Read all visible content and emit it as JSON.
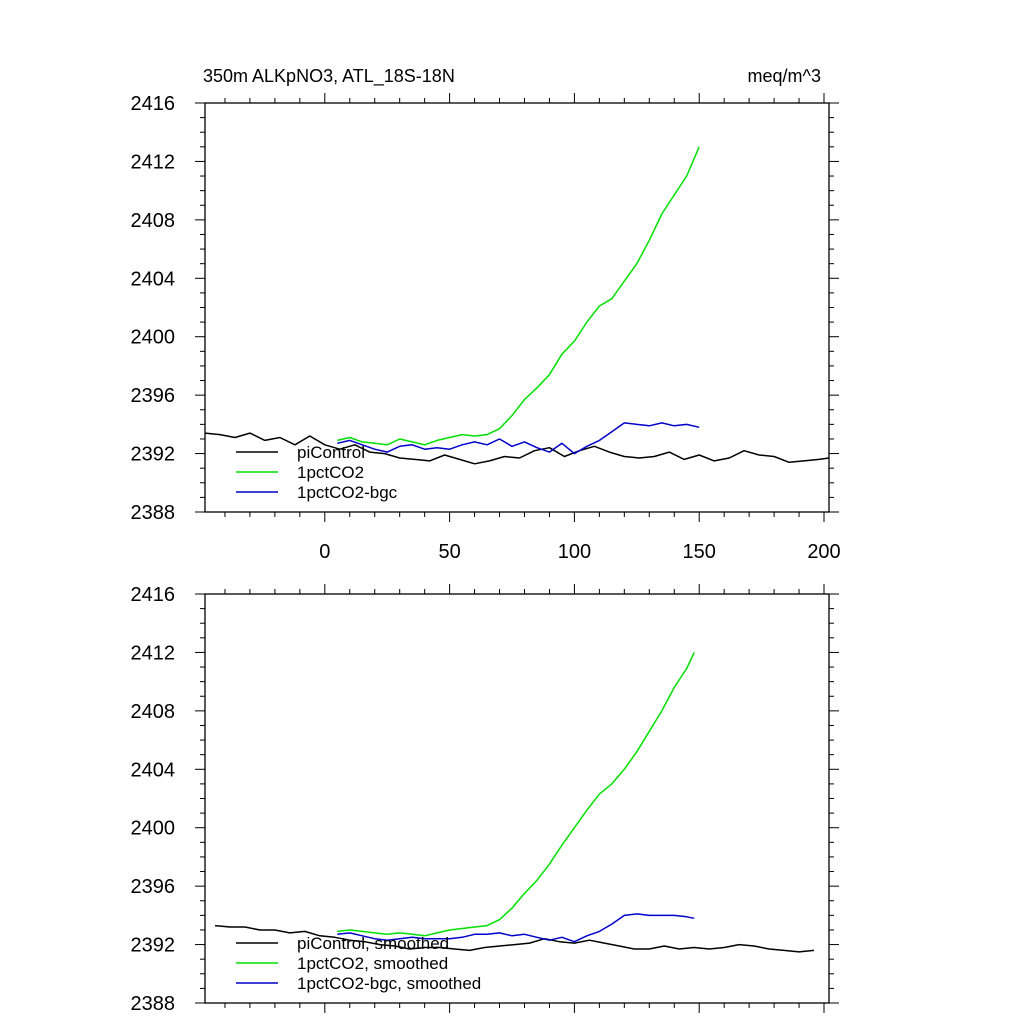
{
  "header": {
    "title_left": "350m ALKpNO3, ATL_18S-18N",
    "title_right": "meq/m^3"
  },
  "colors": {
    "piControl": "#000000",
    "1pctCO2": "#00e000",
    "1pctCO2-bgc": "#0000cc"
  },
  "chart_data": [
    {
      "type": "line",
      "title": "",
      "xlabel": "",
      "ylabel": "",
      "xlim": [
        -48,
        202
      ],
      "ylim": [
        2388,
        2416
      ],
      "x_ticks": [
        "0",
        "50",
        "100",
        "150",
        "200"
      ],
      "y_ticks": [
        "2388",
        "2392",
        "2396",
        "2400",
        "2404",
        "2408",
        "2412",
        "2416"
      ],
      "legend_position": "bottom-left",
      "series": [
        {
          "name": "piControl",
          "x": [
            -48,
            -42,
            -36,
            -30,
            -24,
            -18,
            -12,
            -6,
            0,
            6,
            12,
            18,
            24,
            30,
            36,
            42,
            48,
            54,
            60,
            66,
            72,
            78,
            84,
            90,
            96,
            102,
            108,
            114,
            120,
            126,
            132,
            138,
            144,
            150,
            156,
            162,
            168,
            174,
            180,
            186,
            192,
            198,
            202
          ],
          "y": [
            2393.4,
            2393.3,
            2393.1,
            2393.4,
            2392.9,
            2393.1,
            2392.6,
            2393.2,
            2392.6,
            2392.3,
            2392.6,
            2392.1,
            2392.0,
            2391.7,
            2391.6,
            2391.5,
            2391.9,
            2391.6,
            2391.3,
            2391.5,
            2391.8,
            2391.7,
            2392.2,
            2392.4,
            2391.8,
            2392.2,
            2392.5,
            2392.1,
            2391.8,
            2391.7,
            2391.8,
            2392.1,
            2391.6,
            2391.9,
            2391.5,
            2391.7,
            2392.2,
            2391.9,
            2391.8,
            2391.4,
            2391.5,
            2391.6,
            2391.7
          ]
        },
        {
          "name": "1pctCO2",
          "x": [
            5,
            10,
            15,
            20,
            25,
            30,
            35,
            40,
            45,
            50,
            55,
            60,
            65,
            70,
            75,
            80,
            85,
            90,
            95,
            100,
            105,
            110,
            115,
            120,
            125,
            130,
            135,
            140,
            145,
            150
          ],
          "y": [
            2392.9,
            2393.1,
            2392.8,
            2392.7,
            2392.6,
            2393.0,
            2392.8,
            2392.6,
            2392.9,
            2393.1,
            2393.3,
            2393.2,
            2393.3,
            2393.7,
            2394.6,
            2395.7,
            2396.5,
            2397.4,
            2398.8,
            2399.7,
            2401.0,
            2402.1,
            2402.6,
            2403.8,
            2405.0,
            2406.6,
            2408.4,
            2409.7,
            2411.0,
            2413.0
          ]
        },
        {
          "name": "1pctCO2-bgc",
          "x": [
            5,
            10,
            15,
            20,
            25,
            30,
            35,
            40,
            45,
            50,
            55,
            60,
            65,
            70,
            75,
            80,
            85,
            90,
            95,
            100,
            105,
            110,
            115,
            120,
            125,
            130,
            135,
            140,
            145,
            150
          ],
          "y": [
            2392.7,
            2392.9,
            2392.6,
            2392.3,
            2392.1,
            2392.5,
            2392.6,
            2392.3,
            2392.4,
            2392.3,
            2392.6,
            2392.8,
            2392.6,
            2393.0,
            2392.5,
            2392.8,
            2392.4,
            2392.1,
            2392.7,
            2392.0,
            2392.5,
            2392.9,
            2393.5,
            2394.1,
            2394.0,
            2393.9,
            2394.1,
            2393.9,
            2394.0,
            2393.8
          ]
        }
      ]
    },
    {
      "type": "line",
      "title": "",
      "xlabel": "",
      "ylabel": "",
      "xlim": [
        -48,
        202
      ],
      "ylim": [
        2388,
        2416
      ],
      "x_ticks": [],
      "y_ticks": [
        "2388",
        "2392",
        "2396",
        "2400",
        "2404",
        "2408",
        "2412",
        "2416"
      ],
      "legend_position": "bottom-left",
      "series": [
        {
          "name": "piControl, smoothed",
          "x": [
            -44,
            -38,
            -32,
            -26,
            -20,
            -14,
            -8,
            -2,
            4,
            10,
            16,
            22,
            28,
            34,
            40,
            46,
            52,
            58,
            64,
            70,
            76,
            82,
            88,
            94,
            100,
            106,
            112,
            118,
            124,
            130,
            136,
            142,
            148,
            154,
            160,
            166,
            172,
            178,
            184,
            190,
            196
          ],
          "y": [
            2393.3,
            2393.2,
            2393.2,
            2393.0,
            2393.0,
            2392.8,
            2392.9,
            2392.6,
            2392.5,
            2392.3,
            2392.2,
            2392.0,
            2391.9,
            2391.7,
            2391.8,
            2391.8,
            2391.7,
            2391.6,
            2391.8,
            2391.9,
            2392.0,
            2392.1,
            2392.4,
            2392.2,
            2392.1,
            2392.3,
            2392.1,
            2391.9,
            2391.7,
            2391.7,
            2391.9,
            2391.7,
            2391.8,
            2391.7,
            2391.8,
            2392.0,
            2391.9,
            2391.7,
            2391.6,
            2391.5,
            2391.6
          ]
        },
        {
          "name": "1pctCO2, smoothed",
          "x": [
            5,
            10,
            15,
            20,
            25,
            30,
            35,
            40,
            45,
            50,
            55,
            60,
            65,
            70,
            75,
            80,
            85,
            90,
            95,
            100,
            105,
            110,
            115,
            120,
            125,
            130,
            135,
            140,
            145,
            148
          ],
          "y": [
            2392.9,
            2393.0,
            2392.9,
            2392.8,
            2392.7,
            2392.8,
            2392.7,
            2392.6,
            2392.8,
            2393.0,
            2393.1,
            2393.2,
            2393.3,
            2393.7,
            2394.5,
            2395.5,
            2396.4,
            2397.5,
            2398.8,
            2400.0,
            2401.2,
            2402.3,
            2403.0,
            2404.0,
            2405.2,
            2406.6,
            2408.0,
            2409.6,
            2410.9,
            2412.0
          ]
        },
        {
          "name": "1pctCO2-bgc, smoothed",
          "x": [
            5,
            10,
            15,
            20,
            25,
            30,
            35,
            40,
            45,
            50,
            55,
            60,
            65,
            70,
            75,
            80,
            85,
            90,
            95,
            100,
            105,
            110,
            115,
            120,
            125,
            130,
            135,
            140,
            145,
            148
          ],
          "y": [
            2392.7,
            2392.8,
            2392.6,
            2392.4,
            2392.3,
            2392.4,
            2392.5,
            2392.4,
            2392.4,
            2392.4,
            2392.5,
            2392.7,
            2392.7,
            2392.8,
            2392.6,
            2392.7,
            2392.5,
            2392.3,
            2392.5,
            2392.2,
            2392.6,
            2392.9,
            2393.4,
            2394.0,
            2394.1,
            2394.0,
            2394.0,
            2394.0,
            2393.9,
            2393.8
          ]
        }
      ]
    }
  ]
}
